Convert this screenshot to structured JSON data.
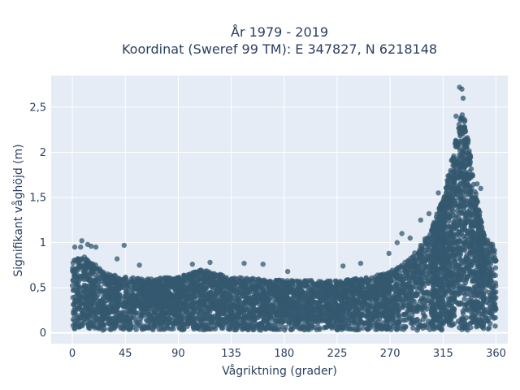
{
  "chart_data": {
    "type": "scatter",
    "title_line1": "År 1979 - 2019",
    "title_line2": "Koordinat (Sweref 99 TM): E 347827, N 6218148",
    "xlabel": "Vågriktning (grader)",
    "ylabel": "Signifikant våghöjd (m)",
    "xlim": [
      -18,
      370
    ],
    "ylim": [
      -0.12,
      2.85
    ],
    "x_ticks": [
      0,
      45,
      90,
      135,
      180,
      225,
      270,
      315,
      360
    ],
    "x_tick_labels": [
      "0",
      "45",
      "90",
      "135",
      "180",
      "225",
      "270",
      "315",
      "360"
    ],
    "y_ticks": [
      0,
      0.5,
      1,
      1.5,
      2,
      2.5
    ],
    "y_tick_labels": [
      "0",
      "0,5",
      "1",
      "1,5",
      "2",
      "2,5"
    ],
    "grid": true,
    "colors": {
      "marker": "#34586f",
      "plot_bg": "#e5ecf6",
      "grid": "#ffffff"
    },
    "x_range": [
      0,
      360
    ],
    "envelope": {
      "x": [
        0,
        10,
        20,
        30,
        45,
        60,
        90,
        110,
        135,
        180,
        225,
        250,
        270,
        285,
        295,
        305,
        315,
        322,
        328,
        332,
        336,
        342,
        350,
        360
      ],
      "upper": [
        0.8,
        0.85,
        0.75,
        0.65,
        0.62,
        0.6,
        0.62,
        0.7,
        0.62,
        0.58,
        0.58,
        0.62,
        0.68,
        0.8,
        0.95,
        1.15,
        1.5,
        1.9,
        2.3,
        2.45,
        2.2,
        1.6,
        1.1,
        0.9
      ],
      "lower": [
        0.04,
        0.03,
        0.03,
        0.03,
        0.03,
        0.03,
        0.03,
        0.03,
        0.03,
        0.03,
        0.03,
        0.03,
        0.03,
        0.03,
        0.03,
        0.03,
        0.03,
        0.03,
        0.03,
        0.03,
        0.03,
        0.03,
        0.03,
        0.04
      ]
    },
    "outliers": [
      {
        "x": 2,
        "y": 0.95
      },
      {
        "x": 7,
        "y": 0.95
      },
      {
        "x": 8,
        "y": 1.02
      },
      {
        "x": 13,
        "y": 0.98
      },
      {
        "x": 16,
        "y": 0.96
      },
      {
        "x": 20,
        "y": 0.95
      },
      {
        "x": 44,
        "y": 0.97
      },
      {
        "x": 38,
        "y": 0.82
      },
      {
        "x": 57,
        "y": 0.75
      },
      {
        "x": 102,
        "y": 0.76
      },
      {
        "x": 117,
        "y": 0.78
      },
      {
        "x": 146,
        "y": 0.77
      },
      {
        "x": 162,
        "y": 0.76
      },
      {
        "x": 183,
        "y": 0.68
      },
      {
        "x": 230,
        "y": 0.74
      },
      {
        "x": 245,
        "y": 0.77
      },
      {
        "x": 269,
        "y": 0.88
      },
      {
        "x": 276,
        "y": 1.0
      },
      {
        "x": 280,
        "y": 1.1
      },
      {
        "x": 287,
        "y": 1.05
      },
      {
        "x": 296,
        "y": 1.25
      },
      {
        "x": 303,
        "y": 1.32
      },
      {
        "x": 311,
        "y": 1.55
      },
      {
        "x": 329,
        "y": 2.72
      },
      {
        "x": 331,
        "y": 2.7
      },
      {
        "x": 332,
        "y": 2.6
      },
      {
        "x": 326,
        "y": 2.4
      },
      {
        "x": 344,
        "y": 1.65
      },
      {
        "x": 347,
        "y": 1.6
      },
      {
        "x": 336,
        "y": 2.1
      },
      {
        "x": 353,
        "y": 1.0
      },
      {
        "x": 357,
        "y": 0.98
      }
    ],
    "marker_opacity": 0.75
  }
}
